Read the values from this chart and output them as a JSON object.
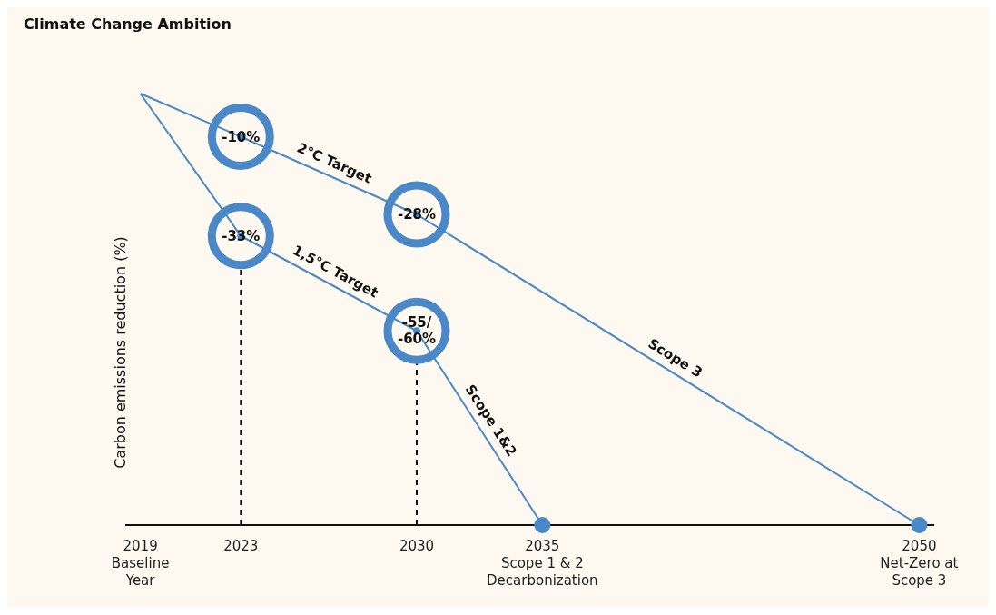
{
  "chart_data": {
    "type": "line",
    "title": "Climate Change Ambition",
    "ylabel": "Carbon emissions reduction (%)",
    "xlim": [
      2018.4,
      2050.6
    ],
    "xticks": [
      {
        "value": 2019,
        "label": "2019\nBaseline\nYear"
      },
      {
        "value": 2023,
        "label": "2023"
      },
      {
        "value": 2030,
        "label": "2030"
      },
      {
        "value": 2035,
        "label": "2035\nScope 1 & 2\nDecarbonization"
      },
      {
        "value": 2050,
        "label": "2050\nNet-Zero at\nScope 3"
      }
    ],
    "tick_labels": "x",
    "marker": "circle",
    "line_style": "solid",
    "series": [
      {
        "name": "2°C Target",
        "color": "#4a88c8",
        "x": [
          2019,
          2023,
          2030,
          2050
        ],
        "values": [
          0,
          -10,
          -28,
          -100
        ],
        "value_labels": [
          null,
          "-10%",
          "-28%",
          null
        ]
      },
      {
        "name": "1,5°C Target",
        "color": "#4a88c8",
        "x": [
          2019,
          2023,
          2030,
          2035
        ],
        "values": [
          0,
          -33,
          -55,
          -100
        ],
        "value_labels": [
          null,
          "-33%",
          "-55/\n-60%",
          null
        ]
      }
    ],
    "ref_lines": [
      {
        "axis": "x",
        "value": 2023,
        "line_style": "dashed",
        "color": "#111111"
      },
      {
        "axis": "x",
        "value": 2030,
        "line_style": "dashed",
        "color": "#111111"
      }
    ],
    "annotations": [
      {
        "text": "Scope 3",
        "x": 2040,
        "y": -64
      },
      {
        "text": "Scope 1&2",
        "x": 2032.5,
        "y": -77.5
      }
    ]
  }
}
